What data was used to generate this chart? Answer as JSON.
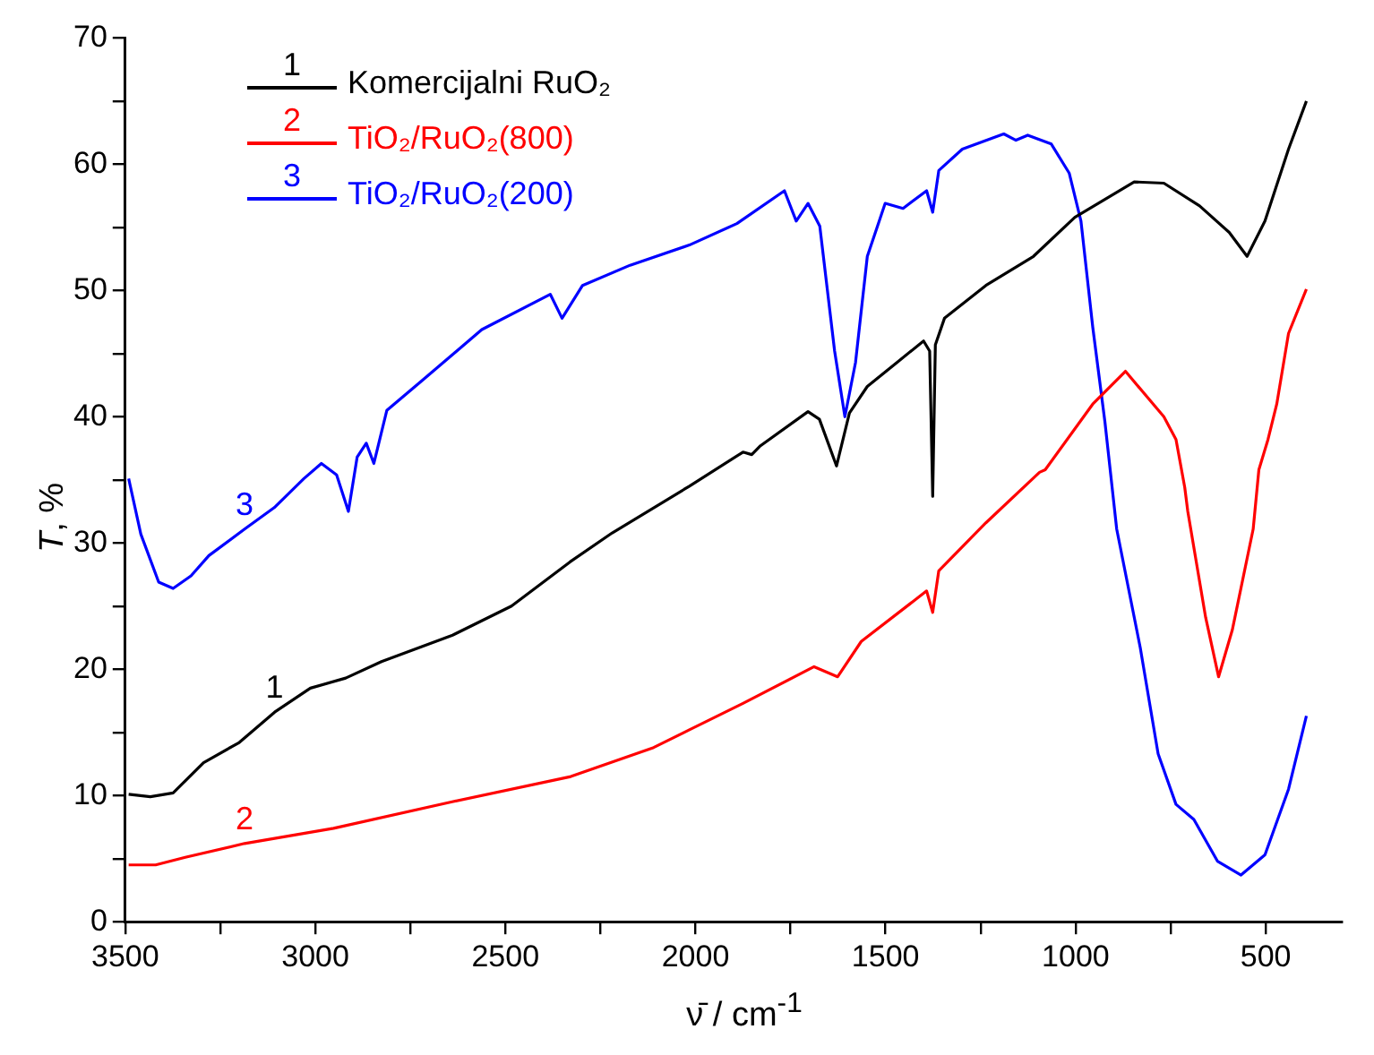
{
  "chart_data": {
    "type": "line",
    "xlabel": "ν̄ / cm$^{-1}$",
    "ylabel": "T, %",
    "xlim": [
      3500,
      300
    ],
    "ylim": [
      0,
      70
    ],
    "xticks": [
      3500,
      {
        "value": 3250,
        "label": null
      },
      3000,
      {
        "value": 2750,
        "label": null
      },
      2500,
      {
        "value": 2250,
        "label": null
      },
      2000,
      {
        "value": 1750,
        "label": null
      },
      1500,
      {
        "value": 1250,
        "label": null
      },
      1000,
      {
        "value": 750,
        "label": null
      },
      500
    ],
    "yticks": [
      0,
      {
        "value": 5,
        "label": null
      },
      10,
      {
        "value": 15,
        "label": null
      },
      20,
      {
        "value": 25,
        "label": null
      },
      30,
      {
        "value": 35,
        "label": null
      },
      40,
      {
        "value": 45,
        "label": null
      },
      50,
      {
        "value": 55,
        "label": null
      },
      60,
      {
        "value": 65,
        "label": null
      },
      70
    ],
    "legend": "top left",
    "grid": false,
    "series": [
      {
        "name": "Komercijalni RuO₂",
        "color": "#000000",
        "x": [
          3491,
          3434,
          3374,
          3294,
          3200,
          3107,
          3013,
          2920,
          2826,
          2639,
          2484,
          2330,
          2219,
          2016,
          1875,
          1852,
          1829,
          1704,
          1674,
          1629,
          1595,
          1548,
          1470,
          1400,
          1384,
          1376,
          1369,
          1345,
          1236,
          1111,
          1002,
          846,
          768,
          674,
          596,
          549,
          502,
          440,
          393
        ],
        "values": [
          10.1,
          9.9,
          10.2,
          12.6,
          14.2,
          16.6,
          18.5,
          19.3,
          20.6,
          22.7,
          25.0,
          28.5,
          30.8,
          34.5,
          37.2,
          37.0,
          37.7,
          40.4,
          39.8,
          36.1,
          40.3,
          42.4,
          44.3,
          46.0,
          45.2,
          33.7,
          45.7,
          47.8,
          50.4,
          52.7,
          55.8,
          58.6,
          58.5,
          56.7,
          54.6,
          52.7,
          55.5,
          61.2,
          65.0
        ]
      },
      {
        "name": "TiO₂/RuO₂(800)",
        "color": "#ff0000",
        "x": [
          3491,
          3420,
          3342,
          3186,
          2952,
          2640,
          2328,
          2110,
          2016,
          1875,
          1688,
          1626,
          1564,
          1392,
          1376,
          1360,
          1236,
          1095,
          1080,
          955,
          869,
          768,
          736,
          713,
          705,
          658,
          624,
          588,
          533,
          518,
          494,
          471,
          440,
          393
        ],
        "values": [
          4.5,
          4.5,
          5.1,
          6.2,
          7.4,
          9.5,
          11.5,
          13.8,
          15.2,
          17.3,
          20.2,
          19.4,
          22.2,
          26.2,
          24.5,
          27.8,
          31.6,
          35.6,
          35.8,
          41.0,
          43.6,
          40.0,
          38.2,
          34.4,
          32.5,
          24.1,
          19.4,
          23.1,
          31.1,
          35.8,
          38.2,
          41.0,
          46.6,
          50.1
        ]
      },
      {
        "name": "TiO₂/RuO₂(200)",
        "color": "#0000ff",
        "x": [
          3491,
          3459,
          3412,
          3374,
          3327,
          3280,
          3186,
          3108,
          3030,
          2984,
          2944,
          2913,
          2890,
          2866,
          2846,
          2812,
          2718,
          2562,
          2382,
          2351,
          2297,
          2172,
          2016,
          1891,
          1766,
          1735,
          1704,
          1673,
          1634,
          1607,
          1579,
          1548,
          1501,
          1454,
          1392,
          1376,
          1360,
          1298,
          1189,
          1157,
          1126,
          1064,
          1017,
          986,
          955,
          923,
          892,
          830,
          783,
          736,
          689,
          627,
          565,
          502,
          440,
          393
        ],
        "values": [
          35.1,
          30.7,
          26.9,
          26.4,
          27.4,
          29.0,
          31.1,
          32.8,
          35.1,
          36.3,
          35.4,
          32.5,
          36.8,
          37.9,
          36.3,
          40.5,
          42.9,
          46.9,
          49.7,
          47.8,
          50.4,
          52.0,
          53.6,
          55.3,
          57.9,
          55.5,
          56.9,
          55.1,
          45.2,
          40.0,
          44.3,
          52.7,
          56.9,
          56.5,
          57.9,
          56.2,
          59.5,
          61.2,
          62.4,
          61.9,
          62.3,
          61.6,
          59.3,
          55.5,
          47.1,
          39.6,
          31.1,
          21.7,
          13.3,
          9.3,
          8.1,
          4.8,
          3.7,
          5.3,
          10.5,
          16.3
        ]
      }
    ],
    "annotations": [
      "1",
      "2",
      "3"
    ]
  }
}
